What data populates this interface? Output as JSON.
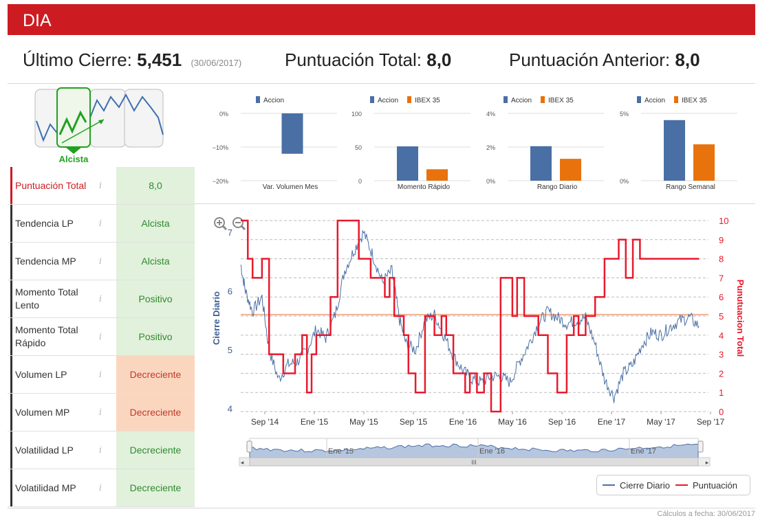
{
  "header": {
    "title": "DIA"
  },
  "summary": {
    "last_close_label": "Último Cierre:",
    "last_close_value": "5,451",
    "last_close_date": "(30/06/2017)",
    "total_score_label": "Puntuación Total:",
    "total_score_value": "8,0",
    "previous_score_label": "Puntuación Anterior:",
    "previous_score_value": "8,0"
  },
  "trend_icon": {
    "label": "Alcista"
  },
  "rows": [
    {
      "label": "Puntuación Total",
      "info": "i",
      "value": "8,0",
      "status": "green"
    },
    {
      "label": "Tendencia LP",
      "info": "i",
      "value": "Alcista",
      "status": "green"
    },
    {
      "label": "Tendencia MP",
      "info": "i",
      "value": "Alcista",
      "status": "green"
    },
    {
      "label": "Momento Total Lento",
      "info": "i",
      "value": "Positivo",
      "status": "green"
    },
    {
      "label": "Momento Total Rápido",
      "info": "i",
      "value": "Positivo",
      "status": "green"
    },
    {
      "label": "Volumen LP",
      "info": "i",
      "value": "Decreciente",
      "status": "orange"
    },
    {
      "label": "Volumen MP",
      "info": "i",
      "value": "Decreciente",
      "status": "orange"
    },
    {
      "label": "Volatilidad LP",
      "info": "i",
      "value": "Decreciente",
      "status": "green"
    },
    {
      "label": "Volatilidad MP",
      "info": "i",
      "value": "Decreciente",
      "status": "green"
    }
  ],
  "colors": {
    "brand_red": "#cc1b21",
    "accion": "#4a6fa5",
    "ibex": "#e8720c",
    "score": "#e8192c",
    "price": "#4a6fa5",
    "hline": "#f0b090"
  },
  "chart_data": [
    {
      "type": "bar",
      "title": "Var. Volumen Mes",
      "categories": [
        "Var. Volumen Mes"
      ],
      "series": [
        {
          "name": "Accion",
          "values": [
            -12
          ]
        }
      ],
      "ylim": [
        -20,
        0
      ],
      "yticks": [
        "0%",
        "−10%",
        "−20%"
      ],
      "ytick_values": [
        0,
        -10,
        -20
      ],
      "legend": "top-center"
    },
    {
      "type": "bar",
      "title": "Momento Rápido",
      "categories": [
        "Momento Rápido"
      ],
      "series": [
        {
          "name": "Accion",
          "values": [
            51
          ]
        },
        {
          "name": "IBEX 35",
          "values": [
            17
          ]
        }
      ],
      "ylim": [
        0,
        100
      ],
      "yticks": [
        "100",
        "50",
        "0"
      ],
      "ytick_values": [
        100,
        50,
        0
      ],
      "legend": "top-center"
    },
    {
      "type": "bar",
      "title": "Rango Diario",
      "categories": [
        "Rango Diario"
      ],
      "series": [
        {
          "name": "Accion",
          "values": [
            2.05
          ]
        },
        {
          "name": "IBEX 35",
          "values": [
            1.3
          ]
        }
      ],
      "ylim": [
        0,
        4
      ],
      "yticks": [
        "4%",
        "2%",
        "0%"
      ],
      "ytick_values": [
        4,
        2,
        0
      ],
      "legend": "top-center"
    },
    {
      "type": "bar",
      "title": "Rango Semanal",
      "categories": [
        "Rango Semanal"
      ],
      "series": [
        {
          "name": "Accion",
          "values": [
            4.5
          ]
        },
        {
          "name": "IBEX 35",
          "values": [
            2.7
          ]
        }
      ],
      "ylim": [
        0,
        5
      ],
      "yticks": [
        "5%",
        "0%"
      ],
      "ytick_values": [
        5,
        0
      ],
      "legend": "top-center"
    },
    {
      "type": "line",
      "title": "",
      "x_ticks": [
        "Sep '14",
        "Ene '15",
        "May '15",
        "Sep '15",
        "Ene '16",
        "May '16",
        "Sep '16",
        "Ene '17",
        "May '17",
        "Sep '17"
      ],
      "left_axis": {
        "label": "Cierre Diario",
        "ticks": [
          "4",
          "5",
          "6",
          "7"
        ],
        "ylim": [
          3.95,
          7.2
        ]
      },
      "right_axis": {
        "label": "Punutuacion Total",
        "ticks": [
          "0",
          "1",
          "2",
          "3",
          "4",
          "5",
          "6",
          "7",
          "8",
          "9",
          "10"
        ],
        "ylim": [
          0,
          10
        ]
      },
      "reference_line": 5.6,
      "series": [
        {
          "name": "Cierre Diario",
          "axis": "left",
          "x": [
            0,
            0.1,
            0.25,
            0.45,
            0.6,
            0.8,
            1.0,
            1.2,
            1.4,
            1.6,
            1.8,
            2.0,
            2.2,
            2.4,
            2.6,
            2.8,
            3.0,
            3.2,
            3.35,
            3.5,
            3.7,
            3.9,
            4.1,
            4.3,
            4.5,
            4.7,
            4.9,
            5.1,
            5.3,
            5.5,
            5.7,
            5.9,
            6.1,
            6.3,
            6.5,
            6.7,
            6.9,
            7.1,
            7.3,
            7.5,
            7.7,
            7.9,
            8.1,
            8.3,
            8.5,
            8.7,
            8.9,
            9.1,
            9.3,
            9.5,
            9.7
          ],
          "values": [
            6.45,
            6.0,
            5.65,
            5.9,
            5.0,
            4.5,
            4.75,
            4.8,
            5.0,
            5.35,
            5.2,
            5.6,
            6.35,
            6.7,
            7.0,
            6.6,
            6.15,
            6.35,
            5.55,
            5.1,
            5.0,
            5.5,
            5.6,
            5.25,
            4.9,
            4.65,
            4.5,
            4.45,
            4.55,
            4.55,
            4.45,
            4.8,
            5.1,
            5.45,
            5.65,
            5.55,
            5.45,
            5.5,
            5.55,
            5.1,
            4.5,
            4.2,
            4.6,
            4.75,
            5.1,
            5.3,
            5.25,
            5.4,
            5.5,
            5.55,
            5.4
          ]
        },
        {
          "name": "Puntuación",
          "axis": "right",
          "x": [
            0,
            0.15,
            0.25,
            0.45,
            0.6,
            0.75,
            0.9,
            1.0,
            1.15,
            1.3,
            1.4,
            1.5,
            1.6,
            1.75,
            1.9,
            2.05,
            2.3,
            2.5,
            2.75,
            3.05,
            3.15,
            3.25,
            3.35,
            3.45,
            3.55,
            3.7,
            3.8,
            3.9,
            4.1,
            4.25,
            4.35,
            4.5,
            4.65,
            4.75,
            4.85,
            5.0,
            5.15,
            5.3,
            5.4,
            5.5,
            5.65,
            5.75,
            5.85,
            6.0,
            6.1,
            6.3,
            6.5,
            6.7,
            6.9,
            7.05,
            7.15,
            7.3,
            7.45,
            7.5,
            7.6,
            7.7,
            7.85,
            8.0,
            8.15,
            8.3,
            8.45,
            8.6,
            8.75,
            8.9,
            9.05,
            9.2,
            9.35,
            9.5,
            9.7
          ],
          "values": [
            10,
            8,
            7,
            8,
            3,
            3,
            2,
            2,
            3,
            4,
            1,
            3,
            4,
            4,
            6,
            10,
            10,
            8,
            7,
            6,
            7,
            5,
            5,
            4,
            2,
            1,
            1,
            5,
            4,
            5,
            4,
            2,
            2,
            1,
            2,
            1,
            2,
            0,
            0,
            7,
            7,
            5,
            7,
            5,
            5,
            4,
            2,
            1,
            4,
            5,
            4,
            5,
            5,
            6,
            6,
            8,
            8,
            9,
            7,
            9,
            8,
            8,
            8,
            8,
            8,
            8,
            8,
            8,
            8
          ]
        }
      ],
      "legend": "bottom-right"
    }
  ],
  "navigator": {
    "labels": [
      "Ene '15",
      "Ene '16",
      "Ene '17"
    ],
    "scroll_grip": "III"
  },
  "legend": {
    "price_label": "Cierre Diario",
    "score_label": "Puntuación"
  },
  "footer": {
    "text": "Cálculos a fecha: 30/06/2017"
  }
}
